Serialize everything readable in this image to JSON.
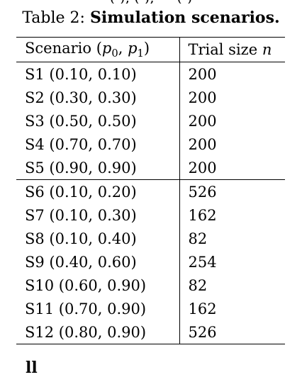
{
  "top_fragment": "(·), (·), ··· (·)",
  "caption": {
    "prefix": "Table 2: ",
    "title": "Simulation scenarios."
  },
  "table": {
    "headers": {
      "scenario": "Scenario (",
      "p0": "p",
      "p0_sub": "0",
      "sep": ", ",
      "p1": "p",
      "p1_sub": "1",
      "close": ")",
      "trial_size": "Trial size ",
      "n": "n"
    },
    "group1": [
      {
        "scenario": "S1 (0.10, 0.10)",
        "n": "200"
      },
      {
        "scenario": "S2 (0.30, 0.30)",
        "n": "200"
      },
      {
        "scenario": "S3 (0.50, 0.50)",
        "n": "200"
      },
      {
        "scenario": "S4 (0.70, 0.70)",
        "n": "200"
      },
      {
        "scenario": "S5 (0.90, 0.90)",
        "n": "200"
      }
    ],
    "group2": [
      {
        "scenario": "S6 (0.10, 0.20)",
        "n": "526"
      },
      {
        "scenario": "S7 (0.10, 0.30)",
        "n": "162"
      },
      {
        "scenario": "S8 (0.10, 0.40)",
        "n": "82"
      },
      {
        "scenario": "S9 (0.40, 0.60)",
        "n": "254"
      },
      {
        "scenario": "S10 (0.60, 0.90)",
        "n": "82"
      },
      {
        "scenario": "S11 (0.70, 0.90)",
        "n": "162"
      },
      {
        "scenario": "S12 (0.80, 0.90)",
        "n": "526"
      }
    ]
  },
  "bottom_fragment": "ll"
}
